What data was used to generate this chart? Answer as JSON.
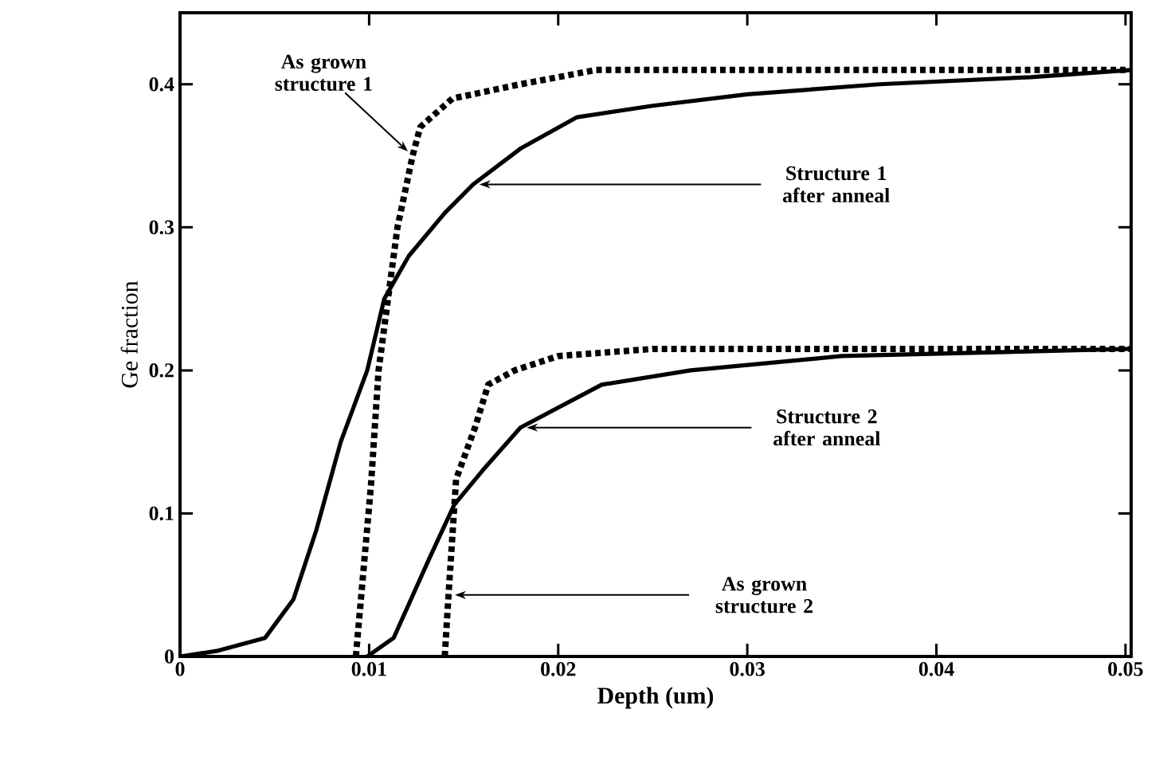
{
  "chart_data": {
    "type": "line",
    "xlabel": "Depth (um)",
    "ylabel": "Ge fraction",
    "xlim": [
      0,
      0.0503
    ],
    "ylim": [
      0,
      0.45
    ],
    "xticks": [
      0,
      0.01,
      0.02,
      0.03,
      0.04,
      0.05
    ],
    "yticks": [
      0,
      0.1,
      0.2,
      0.3,
      0.4
    ],
    "grid": false,
    "series": [
      {
        "color": "#000000",
        "line_style": "dotted",
        "x": [
          0.0093,
          0.0101,
          0.0105,
          0.0115,
          0.0123,
          0.0127,
          0.0144,
          0.018,
          0.022,
          0.03,
          0.04,
          0.0503
        ],
        "values": [
          0,
          0.12,
          0.2,
          0.3,
          0.35,
          0.37,
          0.39,
          0.4,
          0.41,
          0.41,
          0.41,
          0.41
        ]
      },
      {
        "color": "#000000",
        "line_style": "solid",
        "x": [
          0,
          0.002,
          0.0045,
          0.006,
          0.0072,
          0.0085,
          0.0099,
          0.0108,
          0.0121,
          0.014,
          0.0155,
          0.018,
          0.021,
          0.025,
          0.03,
          0.037,
          0.045,
          0.0503
        ],
        "values": [
          0,
          0.004,
          0.013,
          0.04,
          0.088,
          0.15,
          0.2,
          0.25,
          0.28,
          0.31,
          0.33,
          0.355,
          0.377,
          0.385,
          0.393,
          0.4,
          0.405,
          0.41
        ]
      },
      {
        "color": "#000000",
        "line_style": "dotted",
        "x": [
          0.014,
          0.0142,
          0.0146,
          0.0156,
          0.0163,
          0.0177,
          0.02,
          0.025,
          0.035,
          0.0503
        ],
        "values": [
          0,
          0.043,
          0.124,
          0.16,
          0.19,
          0.2,
          0.21,
          0.215,
          0.215,
          0.215
        ]
      },
      {
        "color": "#000000",
        "line_style": "solid",
        "x": [
          0.0099,
          0.0113,
          0.0132,
          0.0145,
          0.016,
          0.018,
          0.0223,
          0.027,
          0.035,
          0.0503
        ],
        "values": [
          0,
          0.013,
          0.069,
          0.106,
          0.13,
          0.16,
          0.19,
          0.2,
          0.21,
          0.215
        ]
      }
    ],
    "annotations": [
      {
        "text": "As grown structure 1",
        "x": 0.0123,
        "y": 0.35
      },
      {
        "text": "Structure 1 after anneal",
        "x": 0.0155,
        "y": 0.33
      },
      {
        "text": "Structure 2 after anneal",
        "x": 0.018,
        "y": 0.16
      },
      {
        "text": "As grown structure 2",
        "x": 0.0142,
        "y": 0.043
      }
    ]
  }
}
